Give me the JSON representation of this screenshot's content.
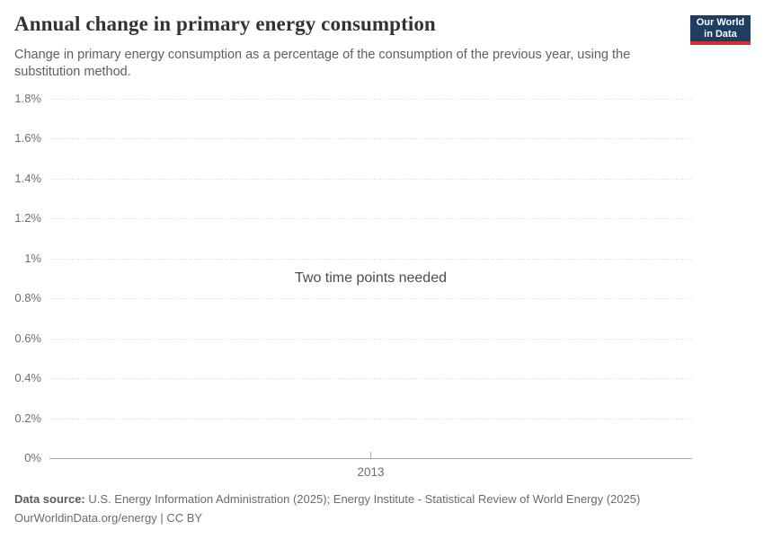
{
  "header": {
    "title": "Annual change in primary energy consumption",
    "subtitle": "Change in primary energy consumption as a percentage of the consumption of the previous year, using the substitution method.",
    "logo": {
      "line1": "Our World",
      "line2": "in Data"
    }
  },
  "colors": {
    "logo_bg": "#1d3d63",
    "logo_stripe": "#cf322b",
    "gridline": "#e7e7e7",
    "axis_line": "#a8a8a8",
    "title_text": "#333333",
    "muted_text": "#6b6b6b"
  },
  "chart_data": {
    "type": "line",
    "title": "Annual change in primary energy consumption",
    "xlabel": "",
    "ylabel": "",
    "ylim": [
      0,
      1.8
    ],
    "y_tick_format": "percent",
    "y_ticks": [
      {
        "label": "1.8%",
        "value": 1.8
      },
      {
        "label": "1.6%",
        "value": 1.6
      },
      {
        "label": "1.4%",
        "value": 1.4
      },
      {
        "label": "1.2%",
        "value": 1.2
      },
      {
        "label": "1%",
        "value": 1.0
      },
      {
        "label": "0.8%",
        "value": 0.8
      },
      {
        "label": "0.6%",
        "value": 0.6
      },
      {
        "label": "0.4%",
        "value": 0.4
      },
      {
        "label": "0.2%",
        "value": 0.2
      },
      {
        "label": "0%",
        "value": 0
      }
    ],
    "x_ticks": [
      {
        "label": "2013",
        "pos": 0.5
      }
    ],
    "series": [],
    "empty_state_message": "Two time points needed",
    "grid": "horizontal-dashed",
    "legend": "none"
  },
  "footer": {
    "source_label": "Data source:",
    "source_text": "U.S. Energy Information Administration (2025); Energy Institute - Statistical Review of World Energy (2025)",
    "license_line": "OurWorldinData.org/energy | CC BY"
  }
}
